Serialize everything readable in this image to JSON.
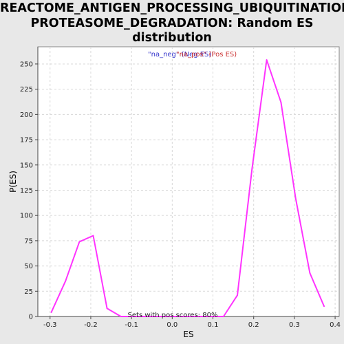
{
  "chart_data": {
    "type": "line",
    "title": "REACTOME_ANTIGEN_PROCESSING_UBIQUITINATION_PROTEASOME_DEGRADATION: Random ES distribution",
    "title_lines": [
      "REACTOME_ANTIGEN_PROCESSING_UBIQUITINATION_",
      "PROTEASOME_DEGRADATION: Random ES",
      "distribution"
    ],
    "xlabel": "ES",
    "ylabel": "P(ES)",
    "xlim": [
      -0.33,
      0.41
    ],
    "ylim": [
      0,
      267
    ],
    "xticks": [
      -0.3,
      -0.2,
      -0.1,
      0.0,
      0.1,
      0.2,
      0.3,
      0.4
    ],
    "xtick_labels": [
      "-0.3",
      "-0.2",
      "-0.1",
      "0.0",
      "0.1",
      "0.2",
      "0.3",
      "0.4"
    ],
    "yticks": [
      0,
      25,
      50,
      75,
      100,
      125,
      150,
      175,
      200,
      225,
      250
    ],
    "ytick_labels": [
      "0",
      "25",
      "50",
      "75",
      "100",
      "125",
      "150",
      "175",
      "200",
      "225",
      "250"
    ],
    "grid": true,
    "legend": {
      "placement": "top-center",
      "entries": [
        {
          "text": "\"na_neg\" (Neg ES)",
          "color": "#3333cc"
        },
        {
          "text": "\"na_pos\" (Pos ES)",
          "color": "#cc3333"
        }
      ]
    },
    "annotation": "Sets with pos scores: 80%",
    "series": [
      {
        "color": "#ff33ff",
        "x": [
          -0.297,
          -0.262,
          -0.228,
          -0.194,
          -0.16,
          -0.126,
          -0.092,
          -0.058,
          0.092,
          0.126,
          0.16,
          0.196,
          0.232,
          0.267,
          0.303,
          0.338,
          0.373
        ],
        "y": [
          4,
          35,
          74,
          80,
          8,
          0,
          0,
          0,
          0,
          0,
          21,
          146,
          254,
          212,
          117,
          43,
          10
        ]
      }
    ]
  }
}
